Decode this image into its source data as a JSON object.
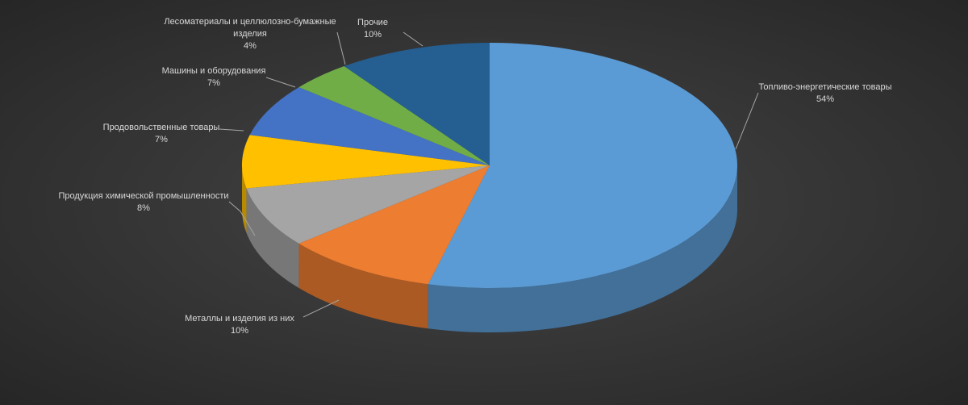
{
  "chart_data": {
    "type": "pie3d",
    "categories": [
      "Топливо-энергетические товары",
      "Металлы и изделия из них",
      "Продукция химической промышленности",
      "Продовольственные товары",
      "Машины и оборудования",
      "Лесоматериалы и целлюлозно-бумажные изделия",
      "Прочие"
    ],
    "values": [
      54,
      10,
      8,
      7,
      7,
      4,
      10
    ],
    "value_labels": [
      "54%",
      "10%",
      "8%",
      "7%",
      "7%",
      "4%",
      "10%"
    ],
    "colors": [
      "#5b9bd5",
      "#ed7d31",
      "#a5a5a5",
      "#ffc000",
      "#4472c4",
      "#70ad47",
      "#255e91"
    ]
  }
}
